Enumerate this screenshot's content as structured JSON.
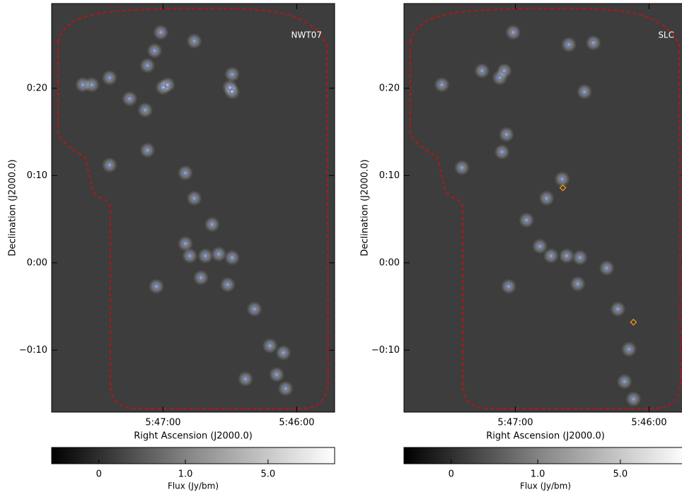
{
  "chart_data": [
    {
      "type": "image",
      "label": "NWT07",
      "xlabel": "Right Ascension (J2000.0)",
      "ylabel": "Declination (J2000.0)",
      "xlim": [
        20870,
        20743
      ],
      "ylim": [
        -17.1,
        29.7
      ],
      "xticks": [
        {
          "value": 20820,
          "label": "5:47:00"
        },
        {
          "value": 20760,
          "label": "5:46:00"
        }
      ],
      "yticks": [
        {
          "value": 20,
          "label": "0:20"
        },
        {
          "value": 10,
          "label": "0:10"
        },
        {
          "value": 0,
          "label": "0:00"
        },
        {
          "value": -10,
          "label": "−0:10"
        }
      ],
      "series": [
        {
          "type": "circle",
          "color": "#5a78c8",
          "x": [
            20823.8,
            20821,
            20827,
            20844,
            20856,
            20852,
            20835,
            20828,
            20820,
            20818,
            20790,
            20789,
            20806,
            20789,
            20827,
            20844,
            20810,
            20806,
            20810,
            20808,
            20801,
            20795,
            20789,
            20791,
            20803,
            20823,
            20779,
            20772,
            20766,
            20769,
            20765,
            20783,
            20798
          ],
          "y": [
            24.3,
            26.4,
            22.6,
            21.2,
            20.4,
            20.4,
            18.8,
            17.5,
            20.1,
            20.4,
            20.1,
            19.6,
            25.4,
            21.6,
            12.9,
            11.2,
            10.3,
            7.4,
            2.2,
            0.8,
            0.8,
            1.0,
            0.6,
            -2.5,
            -1.7,
            -2.7,
            -5.3,
            -9.5,
            -10.3,
            -12.8,
            -14.4,
            -13.3,
            4.4
          ]
        }
      ],
      "colorbar": {
        "label": "Flux (Jy/bm)",
        "lim": [
          -0.41,
          17.8
        ],
        "ticks": [
          0,
          {
            "value": 1,
            "label": "1.0"
          },
          {
            "value": 5,
            "label": "5.0"
          }
        ]
      }
    },
    {
      "type": "image",
      "label": "SLC",
      "xlabel": "Right Ascension (J2000.0)",
      "ylabel": "Declination (J2000.0)",
      "xlim": [
        20870,
        20743
      ],
      "ylim": [
        -17.1,
        29.7
      ],
      "xticks": [
        {
          "value": 20820,
          "label": "5:47:00"
        },
        {
          "value": 20760,
          "label": "5:46:00"
        }
      ],
      "yticks": [
        {
          "value": 20,
          "label": "0:20"
        },
        {
          "value": 10,
          "label": "0:10"
        },
        {
          "value": 0,
          "label": "0:00"
        },
        {
          "value": -10,
          "label": "−0:10"
        }
      ],
      "series": [
        {
          "type": "circle",
          "color": "#5a78c8",
          "x": [
            20825,
            20821,
            20835,
            20853,
            20827,
            20824,
            20826,
            20844,
            20806,
            20799,
            20789,
            20796,
            20785,
            20809,
            20804,
            20797,
            20791,
            20792,
            20823,
            20774,
            20769,
            20771,
            20767,
            20815,
            20779
          ],
          "y": [
            22.0,
            26.4,
            22.0,
            20.4,
            21.2,
            14.7,
            12.7,
            10.9,
            7.4,
            9.6,
            19.6,
            25.0,
            25.2,
            1.9,
            0.8,
            0.8,
            0.6,
            -2.4,
            -2.7,
            -5.3,
            -9.9,
            -13.6,
            -15.6,
            4.9,
            -0.6
          ]
        },
        {
          "type": "diamond",
          "color": "#e8901e",
          "x": [
            20798.7,
            20767
          ],
          "y": [
            8.6,
            -6.8
          ]
        }
      ],
      "colorbar": {
        "label": "Flux (Jy/bm)",
        "lim": [
          -0.41,
          17.8
        ],
        "ticks": [
          0,
          {
            "value": 1,
            "label": "1.0"
          },
          {
            "value": 5,
            "label": "5.0"
          }
        ]
      }
    }
  ]
}
